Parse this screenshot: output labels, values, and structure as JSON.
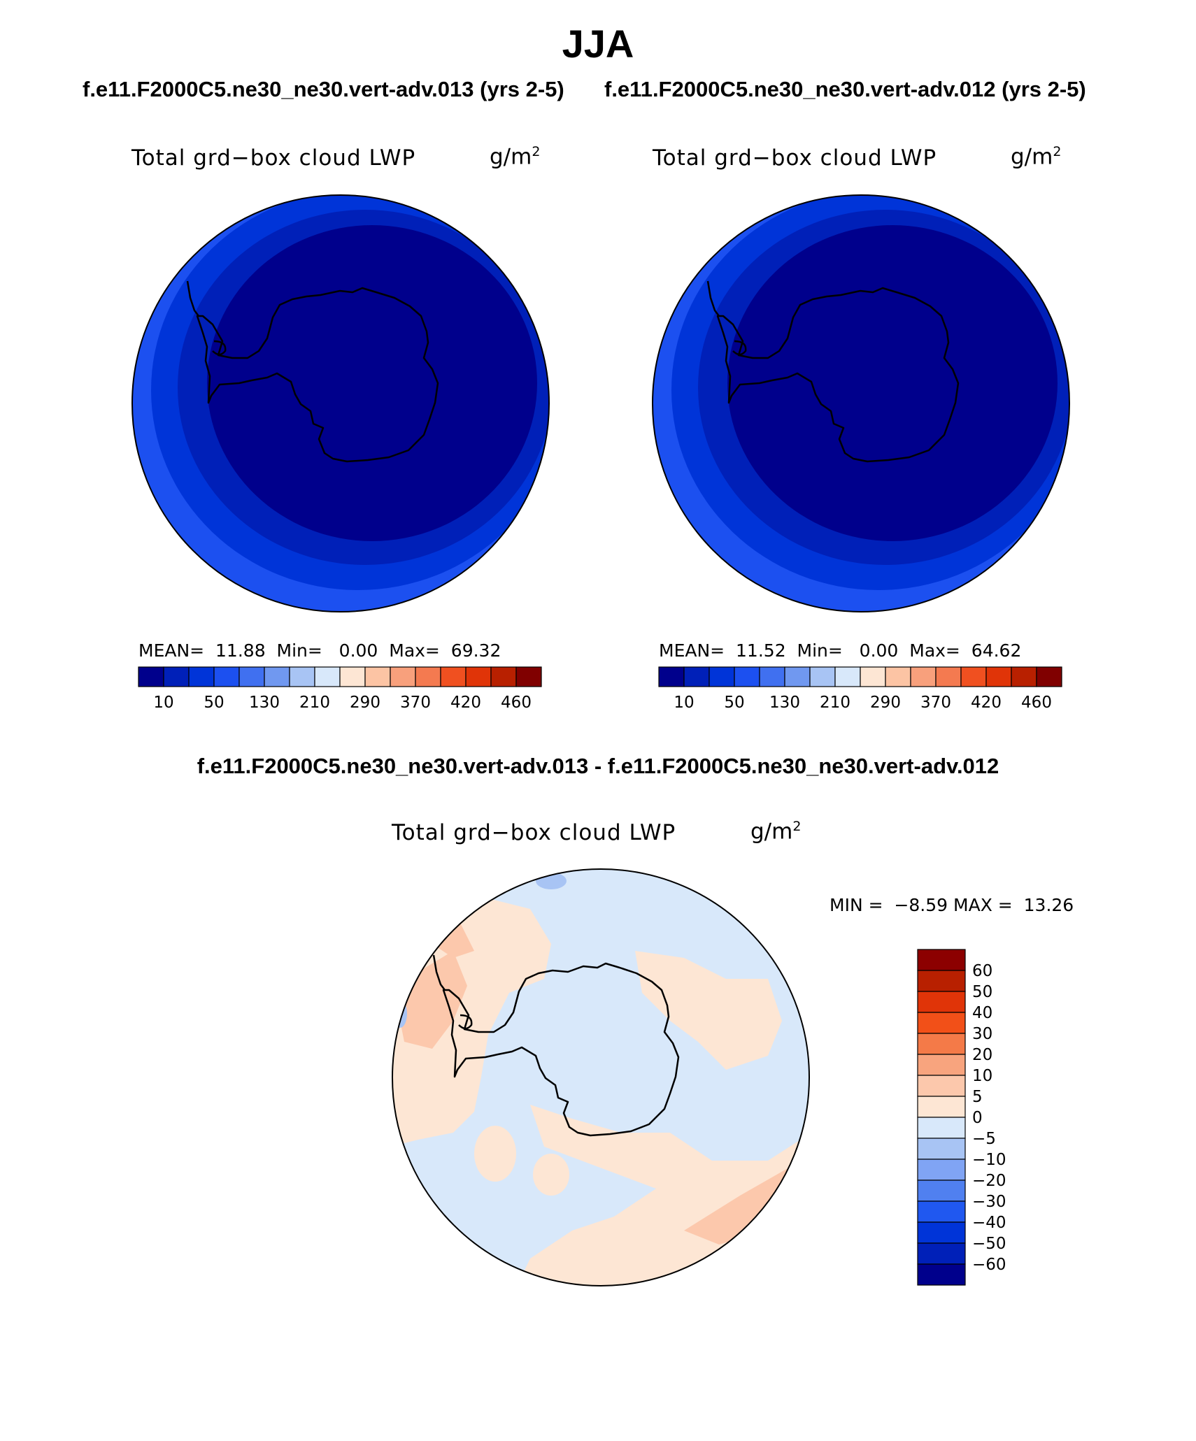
{
  "title": "JJA",
  "case_left": "f.e11.F2000C5.ne30_ne30.vert-adv.013 (yrs 2-5)",
  "case_right": "f.e11.F2000C5.ne30_ne30.vert-adv.012 (yrs 2-5)",
  "diff_title": "f.e11.F2000C5.ne30_ne30.vert-adv.013 - f.e11.F2000C5.ne30_ne30.vert-adv.012",
  "panels": {
    "left": {
      "variable": "Total grd−box cloud LWP",
      "units": "g/m",
      "units_exp": "2",
      "mean_label": "MEAN=",
      "mean": "11.88",
      "min_label": "Min=",
      "min": "0.00",
      "max_label": "Max=",
      "max": "69.32"
    },
    "right": {
      "variable": "Total grd−box cloud LWP",
      "units": "g/m",
      "units_exp": "2",
      "mean_label": "MEAN=",
      "mean": "11.52",
      "min_label": "Min=",
      "min": "0.00",
      "max_label": "Max=",
      "max": "64.62"
    },
    "diff": {
      "variable": "Total grd−box cloud LWP",
      "units": "g/m",
      "units_exp": "2",
      "min_label": "MIN =",
      "min": "−8.59",
      "max_label": "MAX =",
      "max": "13.26"
    }
  },
  "colorbar_abs": {
    "colors": [
      "#00008c",
      "#0020b8",
      "#0034d8",
      "#1c50f0",
      "#4070f0",
      "#7098f0",
      "#a8c4f4",
      "#d8e8fa",
      "#fde6d4",
      "#fcc4a4",
      "#f8a07c",
      "#f47a50",
      "#f05020",
      "#e03408",
      "#b82000",
      "#800000"
    ],
    "labels": [
      "10",
      "50",
      "130",
      "210",
      "290",
      "370",
      "420",
      "460"
    ]
  },
  "colorbar_diff": {
    "colors_top_to_bottom": [
      "#8c0000",
      "#b82000",
      "#e03408",
      "#f25018",
      "#f47a48",
      "#f8a47e",
      "#fcc8ac",
      "#fde6d4",
      "#d8e8fa",
      "#a8c4f4",
      "#80a4f4",
      "#5080f0",
      "#2058f0",
      "#0034d8",
      "#0020b8",
      "#00008c"
    ],
    "labels": [
      "60",
      "50",
      "40",
      "30",
      "20",
      "10",
      "5",
      "0",
      "−5",
      "−10",
      "−20",
      "−30",
      "−40",
      "−50",
      "−60"
    ]
  }
}
